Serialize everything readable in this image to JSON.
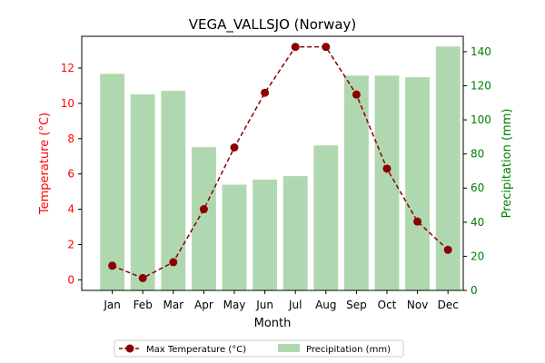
{
  "chart_data": {
    "type": "bar+line",
    "title": "VEGA_VALLSJO (Norway)",
    "xlabel": "Month",
    "categories": [
      "Jan",
      "Feb",
      "Mar",
      "Apr",
      "May",
      "Jun",
      "Jul",
      "Aug",
      "Sep",
      "Oct",
      "Nov",
      "Dec"
    ],
    "temperature": {
      "name": "Max Temperature (°C)",
      "axis_label": "Temperature (°C)",
      "color": "#8b0000",
      "axis_color": "#ff0000",
      "values": [
        0.8,
        0.1,
        1.0,
        4.0,
        7.5,
        10.6,
        13.2,
        13.2,
        10.5,
        6.3,
        3.3,
        1.7
      ],
      "ylim": [
        -0.6,
        13.8
      ],
      "ticks": [
        0,
        2,
        4,
        6,
        8,
        10,
        12
      ]
    },
    "precipitation": {
      "name": "Precipitation (mm)",
      "axis_label": "Precipitation (mm)",
      "color": "#b0d8b0",
      "axis_color": "#008000",
      "values": [
        127,
        115,
        117,
        84,
        62,
        65,
        67,
        85,
        126,
        126,
        125,
        143
      ],
      "ylim": [
        0,
        149
      ],
      "ticks": [
        0,
        20,
        40,
        60,
        80,
        100,
        120,
        140
      ]
    },
    "legend_position": "bottom-center"
  }
}
